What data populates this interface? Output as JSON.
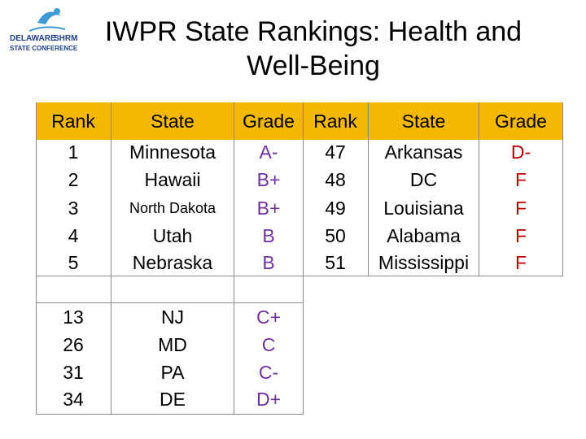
{
  "logo": {
    "line1": "DELAWARE",
    "line1b": "SHRM",
    "line2": "STATE CONFERENCE"
  },
  "title": {
    "line1": "IWPR State Rankings: Health and",
    "line2": "Well-Being"
  },
  "headers": {
    "rank": "Rank",
    "state": "State",
    "grade": "Grade"
  },
  "top": [
    {
      "rank": "1",
      "state": "Minnesota",
      "grade": "A-"
    },
    {
      "rank": "2",
      "state": "Hawaii",
      "grade": "B+"
    },
    {
      "rank": "3",
      "state": "North Dakota",
      "grade": "B+"
    },
    {
      "rank": "4",
      "state": "Utah",
      "grade": "B"
    },
    {
      "rank": "5",
      "state": "Nebraska",
      "grade": "B"
    }
  ],
  "bottom": [
    {
      "rank": "47",
      "state": "Arkansas",
      "grade": "D-"
    },
    {
      "rank": "48",
      "state": "DC",
      "grade": "F"
    },
    {
      "rank": "49",
      "state": "Louisiana",
      "grade": "F"
    },
    {
      "rank": "50",
      "state": "Alabama",
      "grade": "F"
    },
    {
      "rank": "51",
      "state": "Mississippi",
      "grade": "F"
    }
  ],
  "region": [
    {
      "rank": "13",
      "state": "NJ",
      "grade": "C+"
    },
    {
      "rank": "26",
      "state": "MD",
      "grade": "C"
    },
    {
      "rank": "31",
      "state": "PA",
      "grade": "C-"
    },
    {
      "rank": "34",
      "state": "DE",
      "grade": "D+"
    }
  ],
  "colors": {
    "header_bg": "#f5b800",
    "grade_good": "#7030a0",
    "grade_fail": "#c00000"
  }
}
